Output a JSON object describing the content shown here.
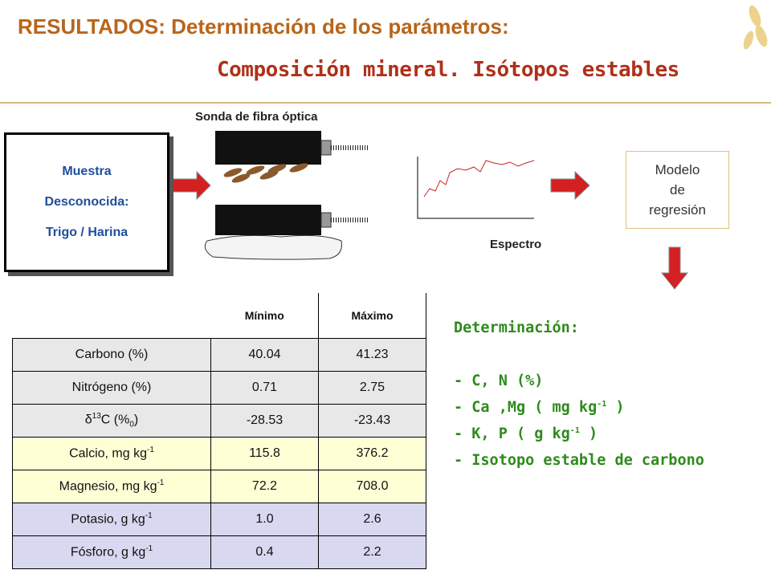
{
  "title": "RESULTADOS: Determinación de los parámetros:",
  "subtitle": "Composición mineral. Isótopos estables",
  "diagram": {
    "sample": [
      "Muestra",
      "Desconocida:",
      "Trigo / Harina"
    ],
    "probe_label": "Sonda de fibra óptica",
    "spectrum_label": "Espectro",
    "model": [
      "Modelo",
      "de",
      "regresión"
    ]
  },
  "table": {
    "header": [
      "Mínimo",
      "Máximo"
    ],
    "rows": [
      {
        "label": [
          {
            "t": "Carbono (%)"
          }
        ],
        "min": "40.04",
        "max": "41.23"
      },
      {
        "label": [
          {
            "t": "Nitrógeno (%)"
          }
        ],
        "min": "0.71",
        "max": "2.75"
      },
      {
        "label": [
          {
            "t": "δ"
          },
          {
            "sup": "13"
          },
          {
            "t": "C (%"
          },
          {
            "sub": "0"
          },
          {
            "t": ")"
          }
        ],
        "min": "-28.53",
        "max": "-23.43"
      },
      {
        "label": [
          {
            "t": "Calcio, mg kg"
          },
          {
            "sup": "-1"
          }
        ],
        "min": "115.8",
        "max": "376.2"
      },
      {
        "label": [
          {
            "t": "Magnesio, mg kg"
          },
          {
            "sup": "-1"
          }
        ],
        "min": "72.2",
        "max": "708.0"
      },
      {
        "label": [
          {
            "t": "Potasio, g kg"
          },
          {
            "sup": "-1"
          }
        ],
        "min": "1.0",
        "max": "2.6"
      },
      {
        "label": [
          {
            "t": "Fósforo, g kg"
          },
          {
            "sup": "-1"
          }
        ],
        "min": "0.4",
        "max": "2.2"
      }
    ]
  },
  "determination": {
    "heading": "Determinación:",
    "items": [
      [
        {
          "t": "- C, N (%)"
        }
      ],
      [
        {
          "t": "- Ca ,Mg ( mg kg"
        },
        {
          "sup": "-1"
        },
        {
          "t": " )"
        }
      ],
      [
        {
          "t": "- K, P ( g kg"
        },
        {
          "sup": "-1"
        },
        {
          "t": " )"
        }
      ],
      [
        {
          "t": "- Isotopo estable de carbono"
        }
      ]
    ]
  }
}
